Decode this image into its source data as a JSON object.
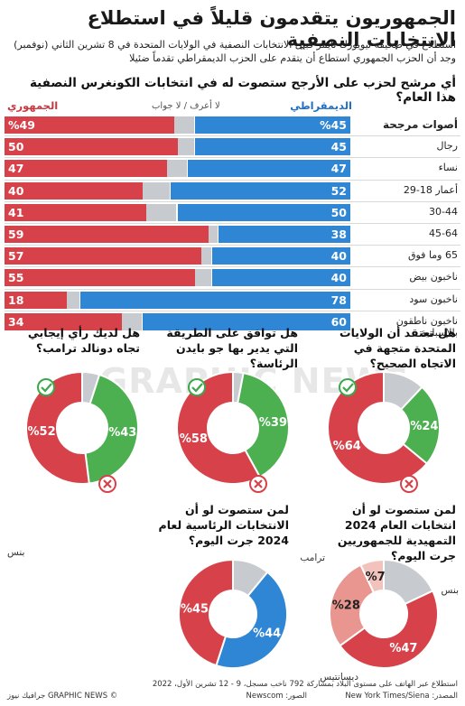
{
  "title": "الجمهوريون يتقدمون قليلاً في استطلاع الانتخابات النصفية",
  "intro": [
    "استطلاع في صحيفة نيويورك تايمز قبيل الانتخابات النصفية في الولايات المتحدة في 8 تشرين الثاني (نوفمبر)",
    "وجد أن الحزب الجمهوري استطاع أن يتقدم على الحزب الديمقراطي تقدماً ضئيلا"
  ],
  "chart_data": [
    {
      "type": "bar",
      "title": "أي مرشح لحزب على الأرجح ستصوت له في انتخابات الكونغرس النصفية هذا العام؟",
      "legend": {
        "dem": "الديمقراطي",
        "und": "لا أعرف / لا جواب",
        "rep": "الجمهوري"
      },
      "categories": [
        "أصوات مرجحة",
        "رجال",
        "نساء",
        "أعمار 18-29",
        "30-44",
        "45-64",
        "65 وما فوق",
        "ناخبون بيض",
        "ناخبون سود",
        "ناخبون ناطقون بالإسبانية"
      ],
      "series": [
        {
          "name": "الجمهوري",
          "values": [
            49,
            50,
            47,
            40,
            41,
            59,
            57,
            55,
            18,
            34
          ],
          "labels": [
            "%49",
            "50",
            "47",
            "40",
            "41",
            "59",
            "57",
            "55",
            "18",
            "34"
          ]
        },
        {
          "name": "الديمقراطي",
          "values": [
            45,
            45,
            47,
            52,
            50,
            38,
            40,
            40,
            78,
            60
          ],
          "labels": [
            "%45",
            "45",
            "47",
            "52",
            "50",
            "38",
            "40",
            "40",
            "78",
            "60"
          ]
        }
      ]
    },
    {
      "type": "pie",
      "title": "هل تعتقد أن الولايات المتحدة متجهة في الاتجاه الصحيح؟",
      "slices": [
        {
          "value": 24,
          "label": "%24",
          "color": "#4caf50"
        },
        {
          "value": 64,
          "label": "%64",
          "color": "#d7424a"
        },
        {
          "value": 12,
          "label": "",
          "color": "#c7cbd0"
        }
      ]
    },
    {
      "type": "pie",
      "title": "هل توافق على الطريقة التي يدير بها جو بايدن الرئاسة؟",
      "slices": [
        {
          "value": 39,
          "label": "%39",
          "color": "#4caf50"
        },
        {
          "value": 58,
          "label": "%58",
          "color": "#d7424a"
        },
        {
          "value": 3,
          "label": "",
          "color": "#c7cbd0"
        }
      ]
    },
    {
      "type": "pie",
      "title": "هل لديك رأي إيجابي تجاه دونالد ترامب؟",
      "slices": [
        {
          "value": 43,
          "label": "%43",
          "color": "#4caf50"
        },
        {
          "value": 52,
          "label": "%52",
          "color": "#d7424a"
        },
        {
          "value": 5,
          "label": "",
          "color": "#c7cbd0"
        }
      ]
    },
    {
      "type": "pie",
      "title": "لمن ستصوت لو أن انتخابات العام 2024 التمهيدية للجمهوريين جرت اليوم؟",
      "slices": [
        {
          "value": 47,
          "label": "%47",
          "color": "#d7424a",
          "name": "ترامب"
        },
        {
          "value": 28,
          "label": "%28",
          "color": "#e8968f",
          "name": "ديسانتيس"
        },
        {
          "value": 7,
          "label": "%7",
          "color": "#f2c3bd",
          "name": "بنس"
        },
        {
          "value": 18,
          "label": "",
          "color": "#c7cbd0"
        }
      ]
    },
    {
      "type": "pie",
      "title": "لمن ستصوت لو أن الانتخابات الرئاسية لعام 2024 جرت اليوم؟",
      "slices": [
        {
          "value": 44,
          "label": "%44",
          "color": "#2f86d4",
          "name": "بنس"
        },
        {
          "value": 45,
          "label": "%45",
          "color": "#d7424a",
          "name": "ترامب"
        },
        {
          "value": 11,
          "label": "",
          "color": "#c7cbd0"
        }
      ]
    }
  ],
  "candidates": {
    "trump": "ترامب",
    "pence_right": "بنس",
    "pence_left": "بنس",
    "desantis": "ديسانتيس"
  },
  "footer": {
    "line1": "استطلاع عبر الهاتف على مستوى البلاد بمشاركة 792 ناخب مسجل، 9 - 12 تشرين الأول، 2022",
    "line2_source": "المصدر: New York Times/Siena",
    "line2_photo": "الصور: Newscom",
    "line2_credit": "© GRAPHIC NEWS جرافيك نيوز"
  },
  "watermark": "GRAPHIC NEWS"
}
